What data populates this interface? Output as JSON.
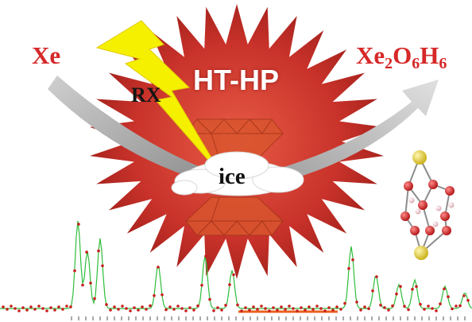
{
  "labels": {
    "reactant": "Xe",
    "product": {
      "base": "Xe",
      "o_sym": "O",
      "h_sym": "H",
      "sub_xe": "2",
      "sub_o": "6",
      "sub_h": "6"
    },
    "radiation": "RX",
    "conditions": "HT-HP",
    "medium": "ice"
  },
  "colors": {
    "burst": "#c8322a",
    "burst_dark": "#9e1f1a",
    "text_red": "#d62828",
    "lightning": "#f5f000",
    "arrow_grey": "#a8a8a8",
    "diamond": "#d9552e",
    "spectrum_red": "#c81e1e",
    "spectrum_green": "#2ebd3a",
    "xe_atom": "#e8d238",
    "o_atom": "#d21e1e"
  },
  "icons": [
    "starburst",
    "lightning-bolt",
    "curved-arrow",
    "diamond-anvil",
    "ice-cloud",
    "molecule",
    "diffraction-pattern"
  ]
}
